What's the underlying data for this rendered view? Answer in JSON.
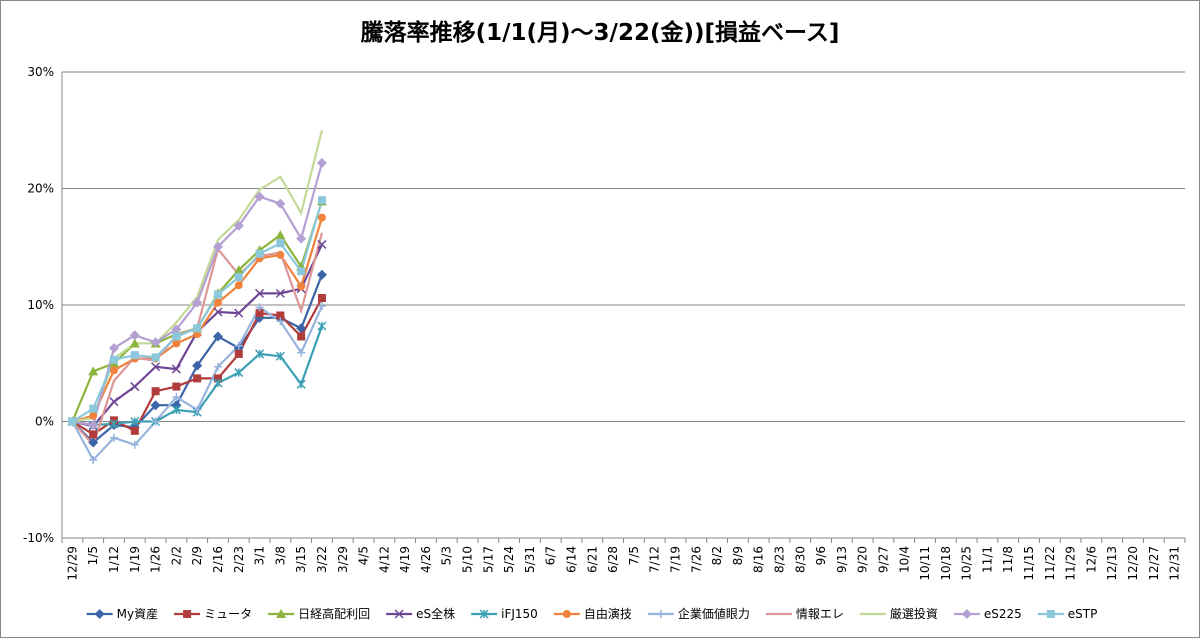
{
  "chart_data": {
    "type": "line",
    "title": "騰落率推移(1/1(月)～3/22(金))[損益ベース]",
    "categories": [
      "12/29",
      "1/5",
      "1/12",
      "1/19",
      "1/26",
      "2/2",
      "2/9",
      "2/16",
      "2/23",
      "3/1",
      "3/8",
      "3/15",
      "3/22",
      "3/29",
      "4/5",
      "4/12",
      "4/19",
      "4/26",
      "5/3",
      "5/10",
      "5/17",
      "5/24",
      "5/31",
      "6/7",
      "6/14",
      "6/21",
      "6/28",
      "7/5",
      "7/12",
      "7/19",
      "7/26",
      "8/2",
      "8/9",
      "8/16",
      "8/23",
      "8/30",
      "9/6",
      "9/13",
      "9/20",
      "9/27",
      "10/4",
      "10/11",
      "10/18",
      "10/25",
      "11/1",
      "11/8",
      "11/15",
      "11/22",
      "11/29",
      "12/6",
      "12/13",
      "12/20",
      "12/27",
      "12/31"
    ],
    "ylim": [
      -10,
      30
    ],
    "yticks": [
      {
        "value": -10,
        "label": "-10%"
      },
      {
        "value": 0,
        "label": "0%"
      },
      {
        "value": 10,
        "label": "10%"
      },
      {
        "value": 20,
        "label": "20%"
      },
      {
        "value": 30,
        "label": "30%"
      }
    ],
    "grid": true,
    "legend": "bottom",
    "series": [
      {
        "name": "My資産",
        "color": "#3c64a8",
        "marker": "diamond",
        "values": [
          0,
          -1.8,
          -0.3,
          -0.5,
          1.4,
          1.4,
          4.8,
          7.3,
          6.3,
          8.9,
          8.9,
          8.0,
          12.6,
          null,
          null,
          null,
          null,
          null,
          null,
          null,
          null,
          null,
          null,
          null,
          null,
          null,
          null,
          null,
          null,
          null,
          null,
          null,
          null,
          null,
          null,
          null,
          null,
          null,
          null,
          null,
          null,
          null,
          null,
          null,
          null,
          null,
          null,
          null,
          null,
          null,
          null,
          null,
          null,
          null
        ]
      },
      {
        "name": "ミュータ",
        "color": "#b03c3c",
        "marker": "square",
        "values": [
          0,
          -1.1,
          0.1,
          -0.8,
          2.6,
          3.0,
          3.7,
          3.7,
          5.8,
          9.3,
          9.1,
          7.3,
          10.6,
          null,
          null,
          null,
          null,
          null,
          null,
          null,
          null,
          null,
          null,
          null,
          null,
          null,
          null,
          null,
          null,
          null,
          null,
          null,
          null,
          null,
          null,
          null,
          null,
          null,
          null,
          null,
          null,
          null,
          null,
          null,
          null,
          null,
          null,
          null,
          null,
          null,
          null,
          null,
          null,
          null
        ]
      },
      {
        "name": "日経高配利回",
        "color": "#8cb43c",
        "marker": "triangle",
        "values": [
          0,
          4.3,
          5.0,
          6.7,
          6.7,
          7.5,
          8.0,
          11.0,
          13.0,
          14.7,
          16.0,
          13.3,
          18.9,
          null,
          null,
          null,
          null,
          null,
          null,
          null,
          null,
          null,
          null,
          null,
          null,
          null,
          null,
          null,
          null,
          null,
          null,
          null,
          null,
          null,
          null,
          null,
          null,
          null,
          null,
          null,
          null,
          null,
          null,
          null,
          null,
          null,
          null,
          null,
          null,
          null,
          null,
          null,
          null,
          null
        ]
      },
      {
        "name": "eS全株",
        "color": "#6e4696",
        "marker": "x",
        "values": [
          0,
          -0.4,
          1.7,
          3.0,
          4.7,
          4.5,
          7.7,
          9.4,
          9.3,
          11.0,
          11.0,
          11.4,
          15.2,
          null,
          null,
          null,
          null,
          null,
          null,
          null,
          null,
          null,
          null,
          null,
          null,
          null,
          null,
          null,
          null,
          null,
          null,
          null,
          null,
          null,
          null,
          null,
          null,
          null,
          null,
          null,
          null,
          null,
          null,
          null,
          null,
          null,
          null,
          null,
          null,
          null,
          null,
          null,
          null,
          null
        ]
      },
      {
        "name": "iFJ150",
        "color": "#3ca0b4",
        "marker": "asterisk",
        "values": [
          0,
          -0.3,
          -0.2,
          0.0,
          0.0,
          1.0,
          0.8,
          3.3,
          4.2,
          5.8,
          5.6,
          3.2,
          8.2,
          null,
          null,
          null,
          null,
          null,
          null,
          null,
          null,
          null,
          null,
          null,
          null,
          null,
          null,
          null,
          null,
          null,
          null,
          null,
          null,
          null,
          null,
          null,
          null,
          null,
          null,
          null,
          null,
          null,
          null,
          null,
          null,
          null,
          null,
          null,
          null,
          null,
          null,
          null,
          null,
          null
        ]
      },
      {
        "name": "自由演技",
        "color": "#f0823c",
        "marker": "circle",
        "values": [
          0,
          0.5,
          4.4,
          5.4,
          5.4,
          6.7,
          7.5,
          10.2,
          11.7,
          14.0,
          14.3,
          11.6,
          17.5,
          null,
          null,
          null,
          null,
          null,
          null,
          null,
          null,
          null,
          null,
          null,
          null,
          null,
          null,
          null,
          null,
          null,
          null,
          null,
          null,
          null,
          null,
          null,
          null,
          null,
          null,
          null,
          null,
          null,
          null,
          null,
          null,
          null,
          null,
          null,
          null,
          null,
          null,
          null,
          null,
          null
        ]
      },
      {
        "name": "企業価値眼力",
        "color": "#96b4dc",
        "marker": "plus",
        "values": [
          0,
          -3.3,
          -1.4,
          -2.0,
          0.0,
          2.1,
          1.0,
          4.7,
          6.5,
          9.8,
          8.6,
          5.9,
          9.9,
          null,
          null,
          null,
          null,
          null,
          null,
          null,
          null,
          null,
          null,
          null,
          null,
          null,
          null,
          null,
          null,
          null,
          null,
          null,
          null,
          null,
          null,
          null,
          null,
          null,
          null,
          null,
          null,
          null,
          null,
          null,
          null,
          null,
          null,
          null,
          null,
          null,
          null,
          null,
          null,
          null
        ]
      },
      {
        "name": "情報エレ",
        "color": "#dc9696",
        "marker": "none",
        "values": [
          0,
          -2.0,
          3.5,
          5.5,
          5.2,
          7.4,
          8.0,
          14.8,
          12.6,
          14.2,
          14.5,
          9.5,
          16.2,
          null,
          null,
          null,
          null,
          null,
          null,
          null,
          null,
          null,
          null,
          null,
          null,
          null,
          null,
          null,
          null,
          null,
          null,
          null,
          null,
          null,
          null,
          null,
          null,
          null,
          null,
          null,
          null,
          null,
          null,
          null,
          null,
          null,
          null,
          null,
          null,
          null,
          null,
          null,
          null,
          null
        ]
      },
      {
        "name": "厳選投資",
        "color": "#c3d996",
        "marker": "none",
        "values": [
          0,
          0.3,
          5.4,
          6.7,
          6.7,
          8.5,
          10.7,
          15.6,
          17.3,
          19.9,
          21.0,
          17.9,
          25.0,
          null,
          null,
          null,
          null,
          null,
          null,
          null,
          null,
          null,
          null,
          null,
          null,
          null,
          null,
          null,
          null,
          null,
          null,
          null,
          null,
          null,
          null,
          null,
          null,
          null,
          null,
          null,
          null,
          null,
          null,
          null,
          null,
          null,
          null,
          null,
          null,
          null,
          null,
          null,
          null,
          null
        ]
      },
      {
        "name": "eS225",
        "color": "#b4a0d2",
        "marker": "diamond",
        "values": [
          0,
          -0.3,
          6.3,
          7.4,
          6.8,
          7.9,
          10.2,
          15.0,
          16.8,
          19.3,
          18.7,
          15.7,
          22.2,
          null,
          null,
          null,
          null,
          null,
          null,
          null,
          null,
          null,
          null,
          null,
          null,
          null,
          null,
          null,
          null,
          null,
          null,
          null,
          null,
          null,
          null,
          null,
          null,
          null,
          null,
          null,
          null,
          null,
          null,
          null,
          null,
          null,
          null,
          null,
          null,
          null,
          null,
          null,
          null,
          null
        ]
      },
      {
        "name": "eSTP",
        "color": "#8cc8dc",
        "marker": "square",
        "values": [
          0,
          1.1,
          5.3,
          5.7,
          5.5,
          7.3,
          8.0,
          10.9,
          12.4,
          14.4,
          15.3,
          12.9,
          19.0,
          null,
          null,
          null,
          null,
          null,
          null,
          null,
          null,
          null,
          null,
          null,
          null,
          null,
          null,
          null,
          null,
          null,
          null,
          null,
          null,
          null,
          null,
          null,
          null,
          null,
          null,
          null,
          null,
          null,
          null,
          null,
          null,
          null,
          null,
          null,
          null,
          null,
          null,
          null,
          null,
          null
        ]
      }
    ]
  }
}
